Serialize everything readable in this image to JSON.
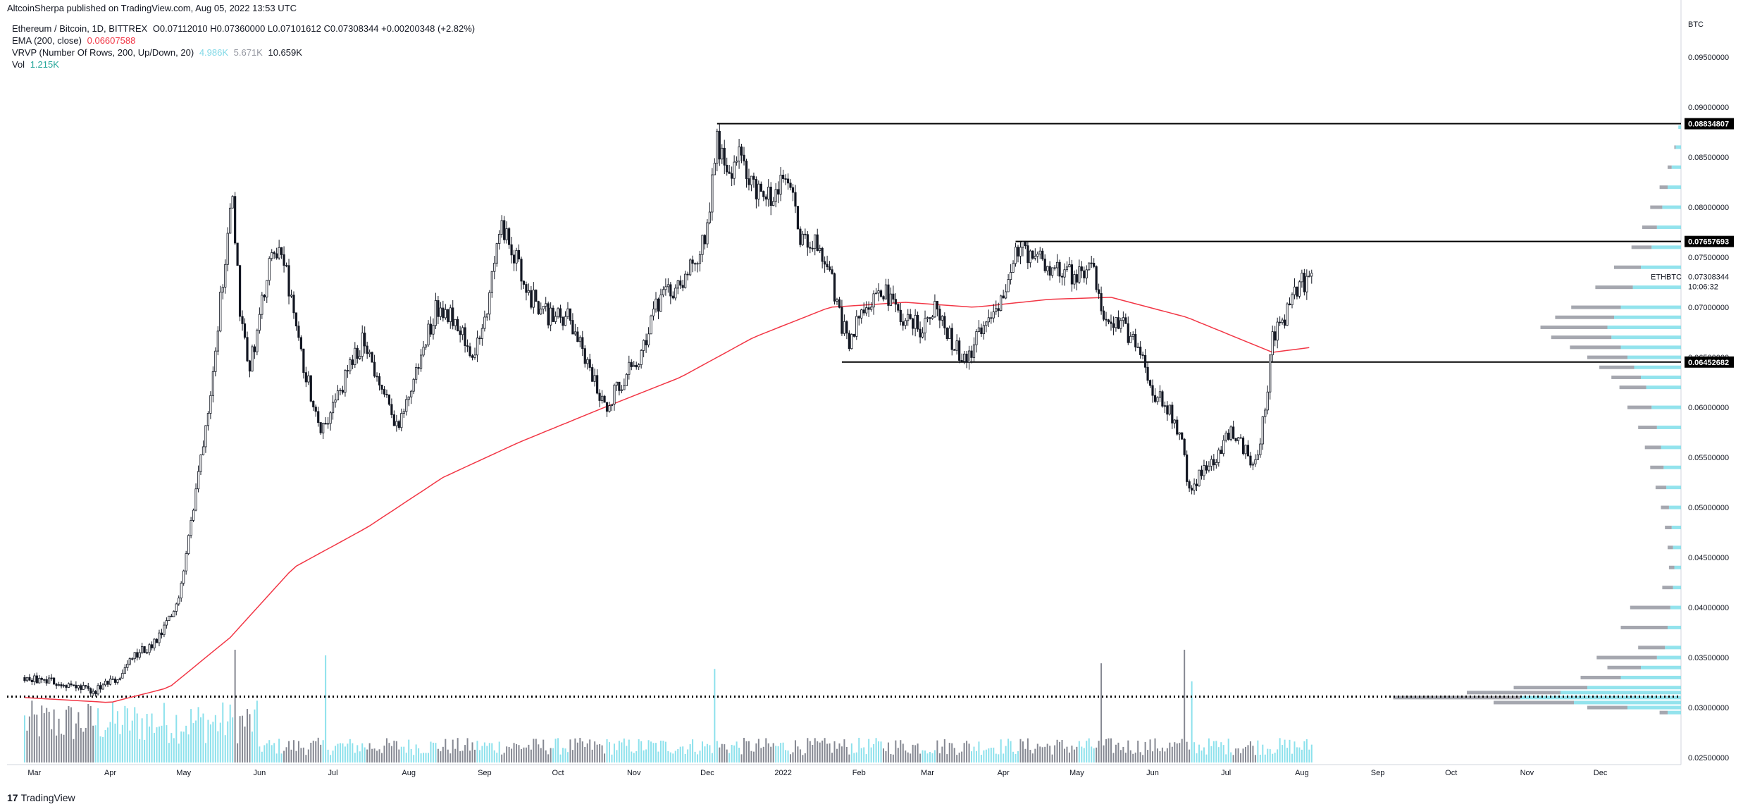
{
  "header": {
    "published": "AltcoinSherpa published on TradingView.com, Aug 05, 2022 13:53 UTC"
  },
  "legend": {
    "symbol": "Ethereum / Bitcoin, 1D, BITTREX",
    "ohlc": "O0.07112010 H0.07360000 L0.07101612 C0.07308344 +0.00200348 (+2.82%)",
    "ema_label": "EMA (200, close)",
    "ema_value": "0.06607588",
    "vrvp_label": "VRVP (Number Of Rows, 200, Up/Down, 20)",
    "vrvp_up": "4.986K",
    "vrvp_down": "5.671K",
    "vrvp_total": "10.659K",
    "vol_label": "Vol",
    "vol_value": "1.215K"
  },
  "footer": {
    "logo": "17",
    "brand": "TradingView"
  },
  "colors": {
    "candle": "#131722",
    "ema": "#f23645",
    "vol_up": "#80deea",
    "vol_down": "#787b86",
    "vrvp_up": "#80deea",
    "vrvp_down": "#9598a1"
  },
  "chart_data": {
    "type": "candlestick",
    "symbol_label": "ETHBTC",
    "last_price": "0.07308344",
    "countdown": "10:06:32",
    "axis_unit": "BTC",
    "y_ticks": [
      "0.09500000",
      "0.09000000",
      "0.08500000",
      "0.08000000",
      "0.07500000",
      "0.07000000",
      "0.06500000",
      "0.06000000",
      "0.05500000",
      "0.05000000",
      "0.04500000",
      "0.04000000",
      "0.03500000",
      "0.03000000",
      "0.02500000"
    ],
    "x_ticks": [
      "Mar",
      "Apr",
      "May",
      "Jun",
      "Jul",
      "Aug",
      "Sep",
      "Oct",
      "Nov",
      "Dec",
      "2022",
      "Feb",
      "Mar",
      "Apr",
      "May",
      "Jun",
      "Jul",
      "Aug",
      "Sep",
      "Oct",
      "Nov",
      "Dec"
    ],
    "ylim": [
      0.0243,
      0.0993
    ],
    "price_labels": [
      "0.08834807",
      "0.07657693",
      "0.06452682"
    ],
    "horizontal_levels": [
      {
        "price": 0.08834807,
        "from_date": "2021-12-05"
      },
      {
        "price": 0.07657693,
        "from_date": "2022-04-06"
      },
      {
        "price": 0.06452682,
        "from_date": "2022-01-25"
      },
      {
        "price": 0.0311,
        "from_date": "2021-02-25",
        "style": "dotted"
      }
    ],
    "price_path": [
      [
        "2021-02-25",
        0.033
      ],
      [
        "2021-03-10",
        0.0325
      ],
      [
        "2021-03-25",
        0.0315
      ],
      [
        "2021-04-05",
        0.033
      ],
      [
        "2021-04-10",
        0.035
      ],
      [
        "2021-04-20",
        0.0365
      ],
      [
        "2021-04-28",
        0.04
      ],
      [
        "2021-05-05",
        0.05
      ],
      [
        "2021-05-12",
        0.062
      ],
      [
        "2021-05-17",
        0.073
      ],
      [
        "2021-05-21",
        0.081
      ],
      [
        "2021-05-24",
        0.07
      ],
      [
        "2021-05-28",
        0.064
      ],
      [
        "2021-06-05",
        0.074
      ],
      [
        "2021-06-10",
        0.076
      ],
      [
        "2021-06-18",
        0.065
      ],
      [
        "2021-06-26",
        0.058
      ],
      [
        "2021-07-01",
        0.06
      ],
      [
        "2021-07-08",
        0.064
      ],
      [
        "2021-07-14",
        0.067
      ],
      [
        "2021-07-20",
        0.062
      ],
      [
        "2021-07-28",
        0.058
      ],
      [
        "2021-08-06",
        0.065
      ],
      [
        "2021-08-12",
        0.07
      ],
      [
        "2021-08-20",
        0.069
      ],
      [
        "2021-08-28",
        0.065
      ],
      [
        "2021-09-03",
        0.071
      ],
      [
        "2021-09-07",
        0.078
      ],
      [
        "2021-09-12",
        0.076
      ],
      [
        "2021-09-20",
        0.071
      ],
      [
        "2021-09-28",
        0.069
      ],
      [
        "2021-10-05",
        0.069
      ],
      [
        "2021-10-12",
        0.065
      ],
      [
        "2021-10-20",
        0.06
      ],
      [
        "2021-10-25",
        0.062
      ],
      [
        "2021-11-03",
        0.065
      ],
      [
        "2021-11-10",
        0.07
      ],
      [
        "2021-11-18",
        0.072
      ],
      [
        "2021-11-25",
        0.074
      ],
      [
        "2021-12-01",
        0.078
      ],
      [
        "2021-12-05",
        0.087
      ],
      [
        "2021-12-09",
        0.083
      ],
      [
        "2021-12-14",
        0.085
      ],
      [
        "2021-12-20",
        0.082
      ],
      [
        "2021-12-28",
        0.081
      ],
      [
        "2022-01-03",
        0.083
      ],
      [
        "2022-01-08",
        0.077
      ],
      [
        "2022-01-15",
        0.076
      ],
      [
        "2022-01-20",
        0.074
      ],
      [
        "2022-01-23",
        0.07
      ],
      [
        "2022-01-28",
        0.066
      ],
      [
        "2022-02-02",
        0.07
      ],
      [
        "2022-02-10",
        0.072
      ],
      [
        "2022-02-18",
        0.069
      ],
      [
        "2022-02-26",
        0.068
      ],
      [
        "2022-03-04",
        0.07
      ],
      [
        "2022-03-12",
        0.066
      ],
      [
        "2022-03-18",
        0.065
      ],
      [
        "2022-03-25",
        0.069
      ],
      [
        "2022-04-03",
        0.072
      ],
      [
        "2022-04-07",
        0.076
      ],
      [
        "2022-04-15",
        0.075
      ],
      [
        "2022-04-22",
        0.074
      ],
      [
        "2022-05-01",
        0.073
      ],
      [
        "2022-05-08",
        0.074
      ],
      [
        "2022-05-11",
        0.069
      ],
      [
        "2022-05-20",
        0.068
      ],
      [
        "2022-05-27",
        0.066
      ],
      [
        "2022-06-02",
        0.061
      ],
      [
        "2022-06-08",
        0.06
      ],
      [
        "2022-06-13",
        0.056
      ],
      [
        "2022-06-16",
        0.052
      ],
      [
        "2022-06-20",
        0.053
      ],
      [
        "2022-06-27",
        0.055
      ],
      [
        "2022-07-03",
        0.058
      ],
      [
        "2022-07-08",
        0.056
      ],
      [
        "2022-07-13",
        0.054
      ],
      [
        "2022-07-17",
        0.06
      ],
      [
        "2022-07-20",
        0.067
      ],
      [
        "2022-07-25",
        0.069
      ],
      [
        "2022-07-29",
        0.072
      ],
      [
        "2022-08-05",
        0.0731
      ]
    ],
    "ema_path": [
      [
        "2021-02-25",
        0.031
      ],
      [
        "2021-04-01",
        0.0305
      ],
      [
        "2021-04-25",
        0.032
      ],
      [
        "2021-05-20",
        0.037
      ],
      [
        "2021-06-15",
        0.044
      ],
      [
        "2021-07-15",
        0.048
      ],
      [
        "2021-08-15",
        0.053
      ],
      [
        "2021-09-15",
        0.0565
      ],
      [
        "2021-10-20",
        0.06
      ],
      [
        "2021-11-20",
        0.063
      ],
      [
        "2021-12-20",
        0.067
      ],
      [
        "2022-01-20",
        0.07
      ],
      [
        "2022-02-20",
        0.0705
      ],
      [
        "2022-03-20",
        0.07
      ],
      [
        "2022-04-20",
        0.0708
      ],
      [
        "2022-05-15",
        0.071
      ],
      [
        "2022-06-15",
        0.069
      ],
      [
        "2022-07-05",
        0.067
      ],
      [
        "2022-07-20",
        0.0655
      ],
      [
        "2022-08-05",
        0.066
      ]
    ],
    "volume_spikes": [
      [
        "2021-05-22",
        1.0
      ],
      [
        "2021-06-28",
        0.95
      ],
      [
        "2021-12-04",
        0.83
      ],
      [
        "2022-05-11",
        0.88
      ],
      [
        "2022-06-14",
        1.0
      ],
      [
        "2022-06-17",
        0.72
      ]
    ],
    "vrvp_profile": [
      [
        0.088,
        2,
        0
      ],
      [
        0.086,
        4,
        1
      ],
      [
        0.084,
        7,
        3
      ],
      [
        0.082,
        10,
        6
      ],
      [
        0.08,
        14,
        9
      ],
      [
        0.078,
        18,
        11
      ],
      [
        0.076,
        22,
        15
      ],
      [
        0.074,
        30,
        20
      ],
      [
        0.072,
        36,
        28
      ],
      [
        0.07,
        45,
        37
      ],
      [
        0.069,
        50,
        44
      ],
      [
        0.068,
        55,
        50
      ],
      [
        0.067,
        52,
        45
      ],
      [
        0.066,
        45,
        38
      ],
      [
        0.065,
        40,
        30
      ],
      [
        0.064,
        35,
        26
      ],
      [
        0.063,
        30,
        22
      ],
      [
        0.062,
        26,
        20
      ],
      [
        0.06,
        22,
        18
      ],
      [
        0.058,
        18,
        14
      ],
      [
        0.056,
        15,
        12
      ],
      [
        0.054,
        13,
        10
      ],
      [
        0.052,
        11,
        8
      ],
      [
        0.05,
        9,
        6
      ],
      [
        0.048,
        7,
        5
      ],
      [
        0.046,
        6,
        4
      ],
      [
        0.044,
        5,
        4
      ],
      [
        0.042,
        6,
        8
      ],
      [
        0.04,
        8,
        30
      ],
      [
        0.038,
        10,
        35
      ],
      [
        0.036,
        12,
        20
      ],
      [
        0.035,
        18,
        45
      ],
      [
        0.034,
        30,
        25
      ],
      [
        0.033,
        45,
        30
      ],
      [
        0.032,
        70,
        55
      ],
      [
        0.0315,
        90,
        70
      ],
      [
        0.031,
        120,
        95
      ],
      [
        0.0305,
        80,
        60
      ],
      [
        0.03,
        40,
        30
      ],
      [
        0.0295,
        10,
        6
      ]
    ]
  }
}
